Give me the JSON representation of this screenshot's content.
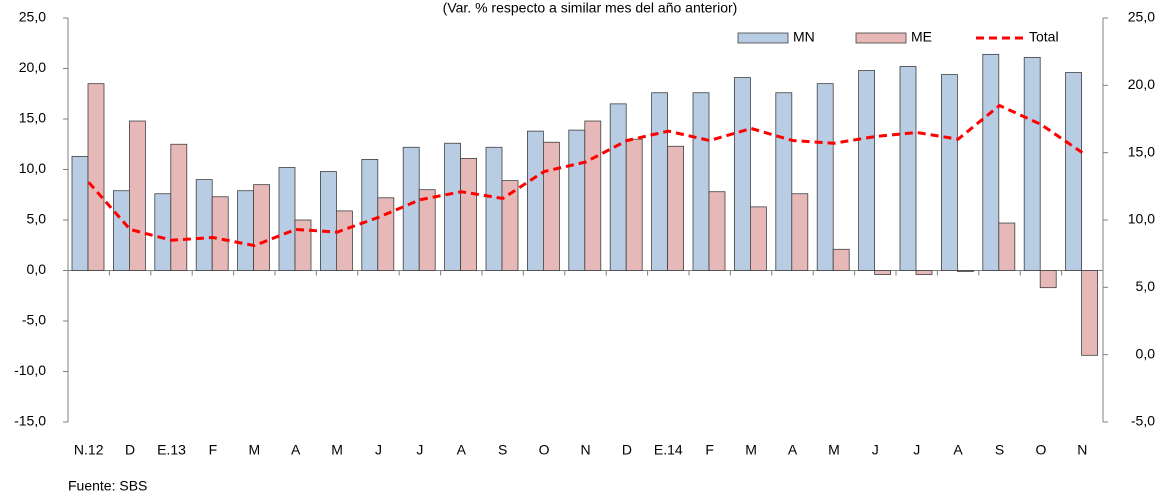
{
  "chart_data": {
    "type": "bar_line",
    "title": "(Var. % respecto a similar mes del año anterior)",
    "source": "Fuente: SBS",
    "categories": [
      "N.12",
      "D",
      "E.13",
      "F",
      "M",
      "A",
      "M",
      "J",
      "J",
      "A",
      "S",
      "O",
      "N",
      "D",
      "E.14",
      "F",
      "M",
      "A",
      "M",
      "J",
      "J",
      "A",
      "S",
      "O",
      "N"
    ],
    "series": [
      {
        "name": "MN",
        "type": "bar",
        "color": "#b8cce4",
        "values": [
          11.3,
          7.9,
          7.6,
          9.0,
          7.9,
          10.2,
          9.8,
          11.0,
          12.2,
          12.6,
          12.2,
          13.8,
          13.9,
          16.5,
          17.6,
          17.6,
          19.1,
          17.6,
          18.5,
          19.8,
          20.2,
          19.4,
          21.4,
          21.1,
          19.6
        ]
      },
      {
        "name": "ME",
        "type": "bar",
        "color": "#e6b9b8",
        "values": [
          18.5,
          14.8,
          12.5,
          7.3,
          8.5,
          5.0,
          5.9,
          7.2,
          8.0,
          11.1,
          8.9,
          12.7,
          14.8,
          13.0,
          12.3,
          7.8,
          6.3,
          7.6,
          2.1,
          -0.4,
          -0.4,
          -0.1,
          4.7,
          -1.7,
          -8.4
        ]
      },
      {
        "name": "Total",
        "type": "line",
        "axis": "y2",
        "color": "#ff0000",
        "values": [
          12.8,
          9.3,
          8.5,
          8.7,
          8.1,
          9.3,
          9.1,
          10.2,
          11.5,
          12.1,
          11.6,
          13.6,
          14.3,
          15.9,
          16.6,
          15.9,
          16.8,
          15.9,
          15.7,
          16.2,
          16.5,
          16.0,
          18.5,
          17.1,
          15.0
        ]
      }
    ],
    "ylim": [
      -15,
      25
    ],
    "yticks": [
      {
        "value": -15,
        "label": "-15,0"
      },
      {
        "value": -10,
        "label": "-10,0"
      },
      {
        "value": -5,
        "label": "-5,0"
      },
      {
        "value": 0,
        "label": "0,0"
      },
      {
        "value": 5,
        "label": "5,0"
      },
      {
        "value": 10,
        "label": "10,0"
      },
      {
        "value": 15,
        "label": "15,0"
      },
      {
        "value": 20,
        "label": "20,0"
      },
      {
        "value": 25,
        "label": "25,0"
      }
    ],
    "y2lim": [
      -5,
      25
    ],
    "y2ticks": [
      {
        "value": -5,
        "label": "-5,0"
      },
      {
        "value": 0,
        "label": "0,0"
      },
      {
        "value": 5,
        "label": "5,0"
      },
      {
        "value": 10,
        "label": "10,0"
      },
      {
        "value": 15,
        "label": "15,0"
      },
      {
        "value": 20,
        "label": "20,0"
      },
      {
        "value": 25,
        "label": "25,0"
      }
    ],
    "legend": "top-right"
  }
}
